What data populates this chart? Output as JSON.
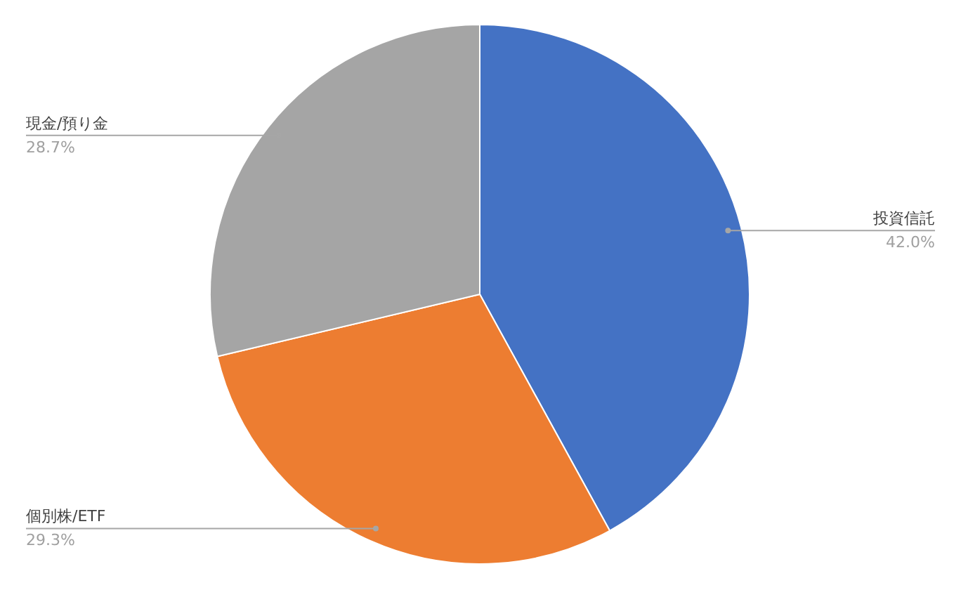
{
  "chart_data": {
    "type": "pie",
    "categories": [
      "投資信託",
      "個別株/ETF",
      "現金/預り金"
    ],
    "values": [
      42.0,
      29.3,
      28.7
    ],
    "colors": [
      "#4472c4",
      "#ed7d31",
      "#a5a5a5"
    ],
    "value_labels": [
      "42.0%",
      "29.3%",
      "28.7%"
    ]
  }
}
